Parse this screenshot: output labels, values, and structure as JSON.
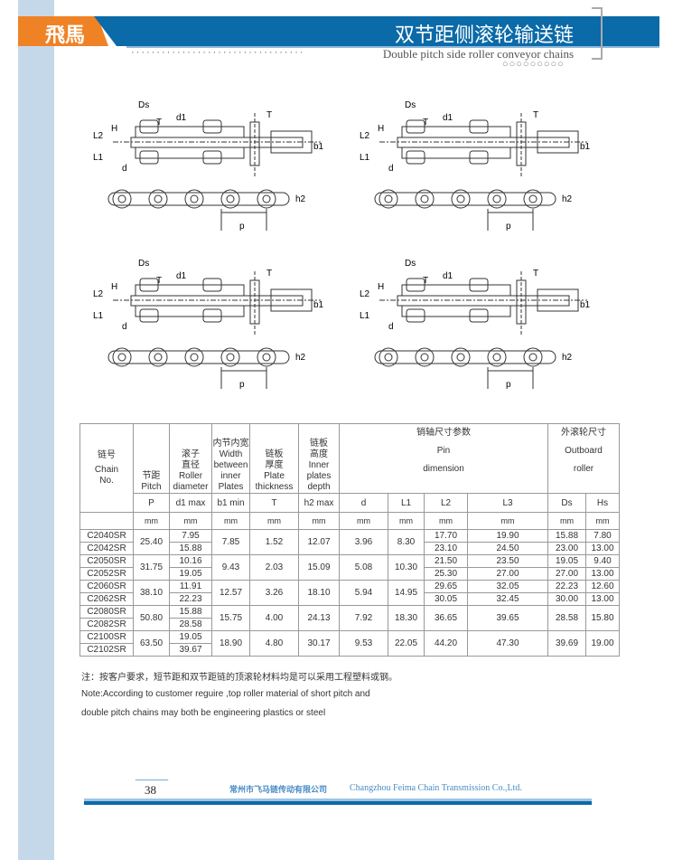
{
  "header": {
    "logo": "飛馬",
    "title_cn": "双节距侧滚轮输送链",
    "title_en": "Double pitch side roller conveyor chains",
    "dots": "··································",
    "circles": "○○○○○○○○○"
  },
  "diagram_labels": {
    "Ds": "Ds",
    "T": "T",
    "d1": "d1",
    "H": "H",
    "L2": "L2",
    "L1": "L1",
    "d": "d",
    "b1": "b1",
    "h2": "h2",
    "p": "p"
  },
  "table": {
    "header": [
      [
        "链号",
        "Chain",
        "No."
      ],
      [
        "节距",
        "Pitch"
      ],
      [
        "滚子",
        "直径",
        "Roller",
        "diameter"
      ],
      [
        "内节内宽",
        "Width",
        "between",
        "inner",
        "Plates"
      ],
      [
        "链板",
        "厚度",
        "Plate",
        "thickness"
      ],
      [
        "链板",
        "高度",
        "Inner",
        "plates",
        "depth"
      ],
      [
        "销轴尺寸参数",
        "Pin",
        "dimension"
      ],
      [
        "外滚轮尺寸",
        "Outboard",
        "roller"
      ]
    ],
    "symbols": [
      "P",
      "d1 max",
      "b1 min",
      "T",
      "h2 max",
      "d",
      "L1",
      "L2",
      "L3",
      "Ds",
      "Hs"
    ],
    "unit": "mm",
    "groups": [
      {
        "chains": [
          "C2040SR",
          "C2042SR"
        ],
        "pitch": "25.40",
        "roller": [
          "7.95",
          "15.88"
        ],
        "width": "7.85",
        "T": "1.52",
        "h2": "12.07",
        "d": "3.96",
        "L1": "8.30",
        "L2": [
          "17.70",
          "23.10"
        ],
        "L3": [
          "19.90",
          "24.50"
        ],
        "Ds": [
          "15.88",
          "23.00"
        ],
        "Hs": [
          "7.80",
          "13.00"
        ]
      },
      {
        "chains": [
          "C2050SR",
          "C2052SR"
        ],
        "pitch": "31.75",
        "roller": [
          "10.16",
          "19.05"
        ],
        "width": "9.43",
        "T": "2.03",
        "h2": "15.09",
        "d": "5.08",
        "L1": "10.30",
        "L2": [
          "21.50",
          "25.30"
        ],
        "L3": [
          "23.50",
          "27.00"
        ],
        "Ds": [
          "19.05",
          "27.00"
        ],
        "Hs": [
          "9.40",
          "13.00"
        ]
      },
      {
        "chains": [
          "C2060SR",
          "C2062SR"
        ],
        "pitch": "38.10",
        "roller": [
          "11.91",
          "22.23"
        ],
        "width": "12.57",
        "T": "3.26",
        "h2": "18.10",
        "d": "5.94",
        "L1": "14.95",
        "L2": [
          "29.65",
          "30.05"
        ],
        "L3": [
          "32.05",
          "32.45"
        ],
        "Ds": [
          "22.23",
          "30.00"
        ],
        "Hs": [
          "12.60",
          "13.00"
        ]
      },
      {
        "chains": [
          "C2080SR",
          "C2082SR"
        ],
        "pitch": "50.80",
        "roller": [
          "15.88",
          "28.58"
        ],
        "width": "15.75",
        "T": "4.00",
        "h2": "24.13",
        "d": "7.92",
        "L1": "18.30",
        "L2": [
          "36.65"
        ],
        "L3": [
          "39.65"
        ],
        "Ds": [
          "28.58"
        ],
        "Hs": [
          "15.80"
        ]
      },
      {
        "chains": [
          "C2100SR",
          "C2102SR"
        ],
        "pitch": "63.50",
        "roller": [
          "19.05",
          "39.67"
        ],
        "width": "18.90",
        "T": "4.80",
        "h2": "30.17",
        "d": "9.53",
        "L1": "22.05",
        "L2": [
          "44.20"
        ],
        "L3": [
          "47.30"
        ],
        "Ds": [
          "39.69"
        ],
        "Hs": [
          "19.00"
        ]
      }
    ]
  },
  "notes": {
    "cn": "注：按客户要求，短节距和双节距链的顶滚轮材料均是可以采用工程塑料或钢。",
    "en1": "Note:According to customer reguire ,top roller material of short pitch and",
    "en2": "double pitch chains may both be engineering plastics or steel"
  },
  "footer": {
    "page": "38",
    "company_cn": "常州市飞马链传动有限公司",
    "company_en": "Changzhou Feima Chain Transmission Co.,Ltd."
  }
}
